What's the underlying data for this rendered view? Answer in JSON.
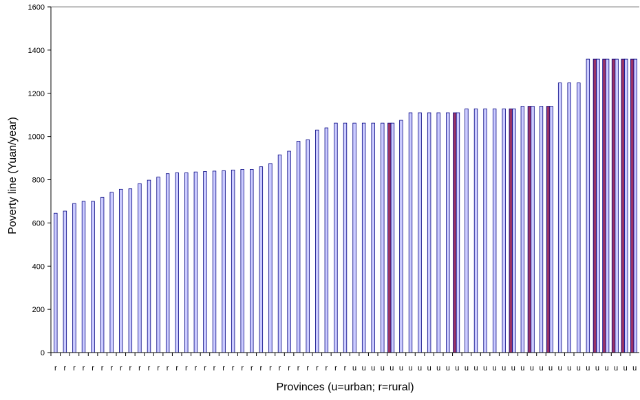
{
  "chart_data": {
    "type": "bar",
    "xlabel": "Provinces (u=urban; r=rural)",
    "ylabel": "Poverty line (Yuan/year)",
    "ylim": [
      0,
      1600
    ],
    "yticks": [
      0,
      200,
      400,
      600,
      800,
      1000,
      1200,
      1400,
      1600
    ],
    "grid": false,
    "legend": "none",
    "colors": {
      "bar_fill": "#ccccff",
      "bar_stroke": "#000080",
      "highlight_fill": "#993366"
    },
    "categories": [
      "r",
      "r",
      "r",
      "r",
      "r",
      "r",
      "r",
      "r",
      "r",
      "r",
      "r",
      "r",
      "r",
      "r",
      "r",
      "r",
      "r",
      "r",
      "r",
      "r",
      "r",
      "r",
      "r",
      "r",
      "r",
      "r",
      "r",
      "r",
      "r",
      "r",
      "r",
      "r",
      "u",
      "u",
      "u",
      "u",
      "u",
      "u",
      "u",
      "u",
      "u",
      "u",
      "u",
      "u",
      "u",
      "u",
      "u",
      "u",
      "u",
      "u",
      "u",
      "u",
      "u",
      "u",
      "u",
      "u",
      "u",
      "u",
      "u",
      "u",
      "u",
      "u",
      "u"
    ],
    "values": [
      645,
      655,
      690,
      700,
      700,
      718,
      742,
      756,
      758,
      782,
      798,
      812,
      828,
      832,
      832,
      836,
      838,
      840,
      842,
      845,
      848,
      848,
      860,
      875,
      915,
      932,
      978,
      985,
      1030,
      1040,
      1062,
      1062,
      1062,
      1062,
      1062,
      1062,
      1062,
      1075,
      1110,
      1110,
      1110,
      1110,
      1110,
      1110,
      1128,
      1128,
      1128,
      1128,
      1128,
      1128,
      1140,
      1140,
      1140,
      1140,
      1248,
      1248,
      1248,
      1358,
      1358,
      1358,
      1358,
      1358,
      1358
    ],
    "highlight": [
      false,
      false,
      false,
      false,
      false,
      false,
      false,
      false,
      false,
      false,
      false,
      false,
      false,
      false,
      false,
      false,
      false,
      false,
      false,
      false,
      false,
      false,
      false,
      false,
      false,
      false,
      false,
      false,
      false,
      false,
      false,
      false,
      false,
      false,
      false,
      false,
      true,
      false,
      false,
      false,
      false,
      false,
      false,
      true,
      false,
      false,
      false,
      false,
      false,
      true,
      false,
      true,
      false,
      true,
      false,
      false,
      false,
      false,
      true,
      true,
      true,
      true,
      true
    ]
  }
}
